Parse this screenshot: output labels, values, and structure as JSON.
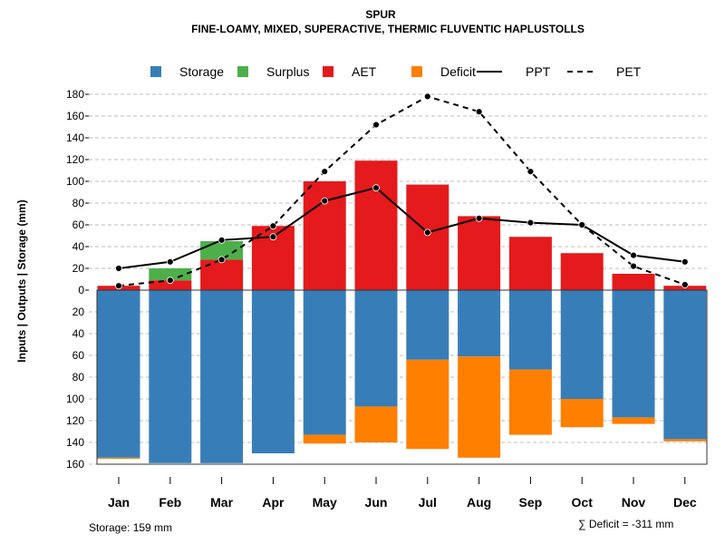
{
  "chart_data": {
    "type": "bar",
    "title": "SPUR",
    "subtitle": "FINE-LOAMY, MIXED, SUPERACTIVE, THERMIC FLUVENTIC HAPLUSTOLLS",
    "ylabel": "Inputs | Outputs | Storage    (mm)",
    "ylim_upper": [
      0,
      180
    ],
    "ylim_lower": [
      0,
      160
    ],
    "yticks_upper": [
      "0",
      "20",
      "40",
      "60",
      "80",
      "100",
      "120",
      "140",
      "160",
      "180"
    ],
    "yticks_lower": [
      "20",
      "40",
      "60",
      "80",
      "100",
      "120",
      "140",
      "160"
    ],
    "categories": [
      "Jan",
      "Feb",
      "Mar",
      "Apr",
      "May",
      "Jun",
      "Jul",
      "Aug",
      "Sep",
      "Oct",
      "Nov",
      "Dec"
    ],
    "legend": [
      "Storage",
      "Surplus",
      "AET",
      "Deficit",
      "PPT",
      "PET"
    ],
    "legend_placement": "top",
    "colors": {
      "Storage": "#377EB8",
      "Surplus": "#4DAF4A",
      "AET": "#E41A1C",
      "Deficit": "#FF7F00",
      "line": "#000000",
      "grid": "#BEBEBE"
    },
    "series": [
      {
        "name": "AET",
        "values": [
          4,
          9,
          28,
          59,
          100,
          119,
          97,
          68,
          49,
          34,
          15,
          4
        ]
      },
      {
        "name": "Surplus",
        "values": [
          0,
          11,
          17,
          0,
          0,
          0,
          0,
          0,
          0,
          0,
          0,
          0
        ]
      },
      {
        "name": "Storage",
        "values": [
          154,
          159,
          159,
          150,
          133,
          107,
          64,
          61,
          73,
          100,
          117,
          137
        ]
      },
      {
        "name": "Deficit",
        "values": [
          1,
          0,
          0,
          0,
          8,
          33,
          82,
          93,
          60,
          26,
          6,
          2
        ]
      },
      {
        "name": "PPT",
        "values": [
          20,
          26,
          46,
          49,
          82,
          94,
          53,
          66,
          62,
          60,
          32,
          26
        ]
      },
      {
        "name": "PET",
        "values": [
          4,
          9,
          28,
          59,
          109,
          152,
          178,
          164,
          109,
          60,
          22,
          5
        ]
      }
    ],
    "annotations": {
      "storage": "Storage: 159 mm",
      "deficit": "∑ Deficit = -311 mm"
    }
  }
}
